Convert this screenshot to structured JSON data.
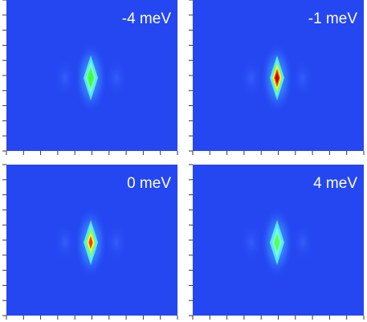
{
  "panels": [
    {
      "label": "-4 meV"
    },
    {
      "label": "-1 meV"
    },
    {
      "label": "0 meV"
    },
    {
      "label": "4 meV"
    }
  ]
}
